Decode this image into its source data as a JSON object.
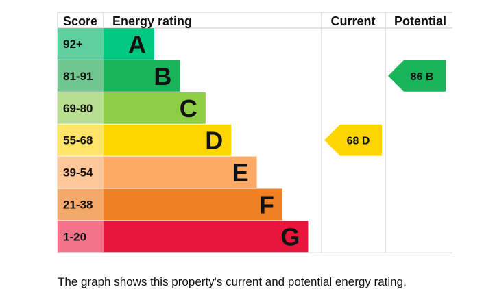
{
  "headers": {
    "score": "Score",
    "rating": "Energy rating",
    "current": "Current",
    "potential": "Potential"
  },
  "chart_data": {
    "type": "bar",
    "bands": [
      {
        "letter": "A",
        "range": "92+",
        "min": 92,
        "max": 100,
        "color": "#00c781",
        "score_color": "#5fcfa0"
      },
      {
        "letter": "B",
        "range": "81-91",
        "min": 81,
        "max": 91,
        "color": "#19b459",
        "score_color": "#6fc68f"
      },
      {
        "letter": "C",
        "range": "69-80",
        "min": 69,
        "max": 80,
        "color": "#8dce46",
        "score_color": "#b7df8f"
      },
      {
        "letter": "D",
        "range": "55-68",
        "min": 55,
        "max": 68,
        "color": "#ffd500",
        "score_color": "#ffe46a"
      },
      {
        "letter": "E",
        "range": "39-54",
        "min": 39,
        "max": 54,
        "color": "#fcaa65",
        "score_color": "#fdc79a"
      },
      {
        "letter": "F",
        "range": "21-38",
        "min": 21,
        "max": 38,
        "color": "#ef8023",
        "score_color": "#f4a96a"
      },
      {
        "letter": "G",
        "range": "1-20",
        "min": 1,
        "max": 20,
        "color": "#e9153b",
        "score_color": "#f2728a"
      }
    ],
    "current": {
      "value": 68,
      "letter": "D",
      "label": "68 D",
      "color": "#ffd500"
    },
    "potential": {
      "value": 86,
      "letter": "B",
      "label": "86 B",
      "color": "#19b459"
    }
  },
  "footnote": "The graph shows this property's current and potential energy rating."
}
